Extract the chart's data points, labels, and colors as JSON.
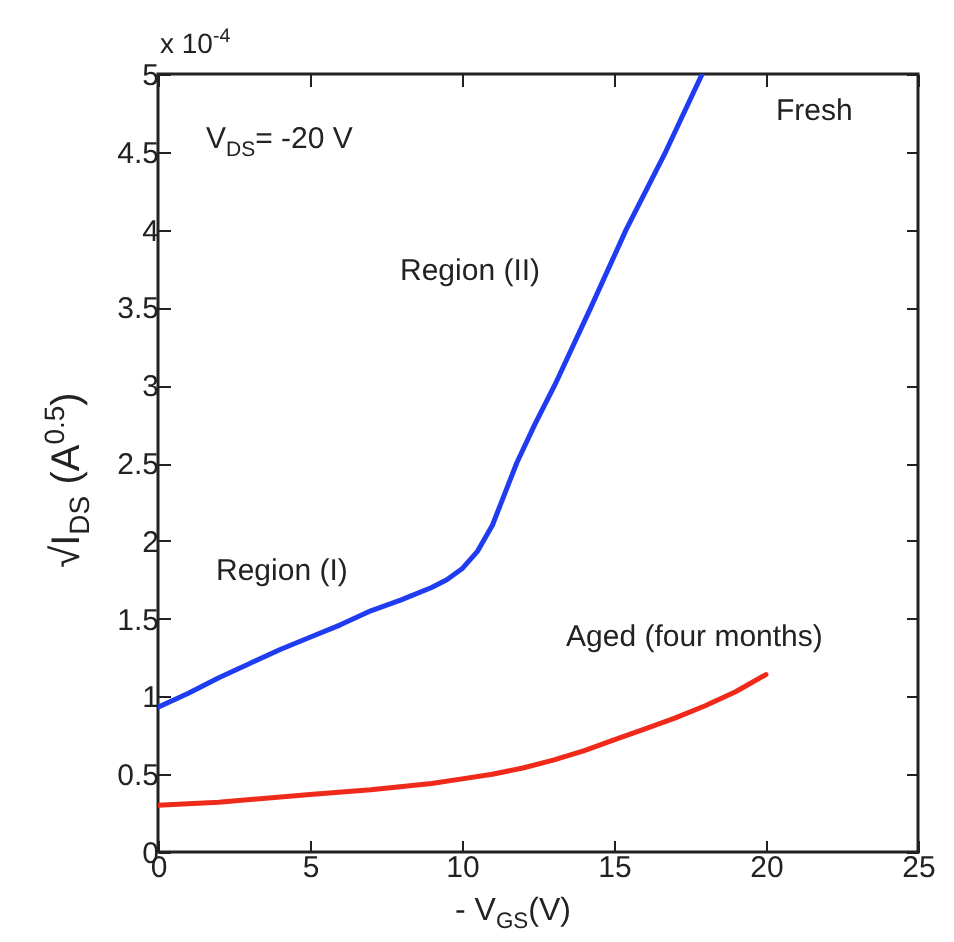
{
  "chart_data": {
    "type": "line",
    "xlabel": "- V$_{GS}$(V)",
    "ylabel": "√I$_{DS}$ (A$^{0.5}$)",
    "annotations": [
      "x 10$^{-4}$",
      "V$_{DS}$= -20 V",
      "Region (I)",
      "Region (II)"
    ],
    "xlim": [
      0,
      25
    ],
    "xticks": [
      0,
      5,
      10,
      15,
      20,
      25
    ],
    "ylim": [
      0,
      5
    ],
    "yticks": [
      0,
      0.5,
      1,
      1.5,
      2,
      2.5,
      3,
      3.5,
      4,
      4.5,
      5
    ],
    "grid": false,
    "legend": false,
    "line_style": "solid",
    "marker": "none",
    "series": [
      {
        "name": "Fresh",
        "color": "#1f3cf0",
        "x": [
          0,
          1,
          2,
          3,
          4,
          5,
          6,
          7,
          8,
          9,
          9.5,
          10,
          10.5,
          11,
          11.5,
          11.8,
          12.4,
          13.05,
          14.24,
          15.4,
          16.7,
          17.9
        ],
        "values": [
          0.93,
          1.02,
          1.12,
          1.21,
          1.3,
          1.38,
          1.46,
          1.55,
          1.62,
          1.7,
          1.75,
          1.82,
          1.93,
          2.1,
          2.35,
          2.5,
          2.75,
          3,
          3.5,
          4,
          4.5,
          5
        ]
      },
      {
        "name": "Aged (four months)",
        "color": "#f02a1a",
        "x": [
          0,
          2,
          5,
          7,
          9,
          10,
          11,
          12,
          13,
          14,
          15,
          16,
          17,
          18,
          19,
          20
        ],
        "values": [
          0.3,
          0.32,
          0.37,
          0.4,
          0.44,
          0.47,
          0.5,
          0.54,
          0.59,
          0.65,
          0.72,
          0.79,
          0.86,
          0.94,
          1.03,
          1.14
        ]
      }
    ]
  }
}
